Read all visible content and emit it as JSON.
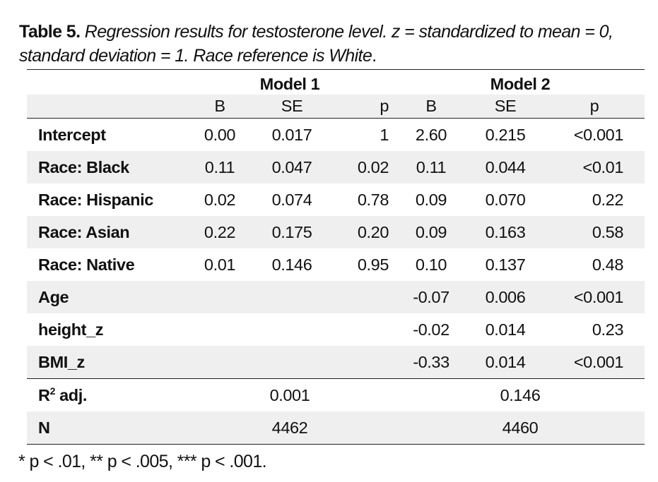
{
  "caption": {
    "label": "Table 5.",
    "text": "Regression results for testosterone level. z = standardized to mean = 0, standard deviation = 1. Race reference is White",
    "end": "."
  },
  "table": {
    "models": [
      "Model 1",
      "Model 2"
    ],
    "subheaders": [
      "B",
      "SE",
      "p",
      "B",
      "SE",
      "p"
    ],
    "rows": [
      {
        "label": "Intercept",
        "cells": [
          "0.00",
          "0.017",
          "1",
          "2.60",
          "0.215",
          "<0.001"
        ]
      },
      {
        "label": "Race: Black",
        "cells": [
          "0.11",
          "0.047",
          "0.02",
          "0.11",
          "0.044",
          "<0.01"
        ]
      },
      {
        "label": "Race: Hispanic",
        "cells": [
          "0.02",
          "0.074",
          "0.78",
          "0.09",
          "0.070",
          "0.22"
        ]
      },
      {
        "label": "Race: Asian",
        "cells": [
          "0.22",
          "0.175",
          "0.20",
          "0.09",
          "0.163",
          "0.58"
        ]
      },
      {
        "label": "Race: Native",
        "cells": [
          "0.01",
          "0.146",
          "0.95",
          "0.10",
          "0.137",
          "0.48"
        ]
      },
      {
        "label": "Age",
        "cells": [
          "",
          "",
          "",
          "-0.07",
          "0.006",
          "<0.001"
        ]
      },
      {
        "label": "height_z",
        "cells": [
          "",
          "",
          "",
          "-0.02",
          "0.014",
          "0.23"
        ]
      },
      {
        "label": "BMI_z",
        "cells": [
          "",
          "",
          "",
          "-0.33",
          "0.014",
          "<0.001"
        ]
      }
    ],
    "fit": [
      {
        "label_main": "R",
        "label_sup": "2",
        "label_rest": " adj.",
        "model1": "0.001",
        "model2": "0.146"
      },
      {
        "label_main": "N",
        "label_sup": "",
        "label_rest": "",
        "model1": "4462",
        "model2": "4460"
      }
    ]
  },
  "footnote": "* p < .01, ** p < .005, *** p < .001."
}
